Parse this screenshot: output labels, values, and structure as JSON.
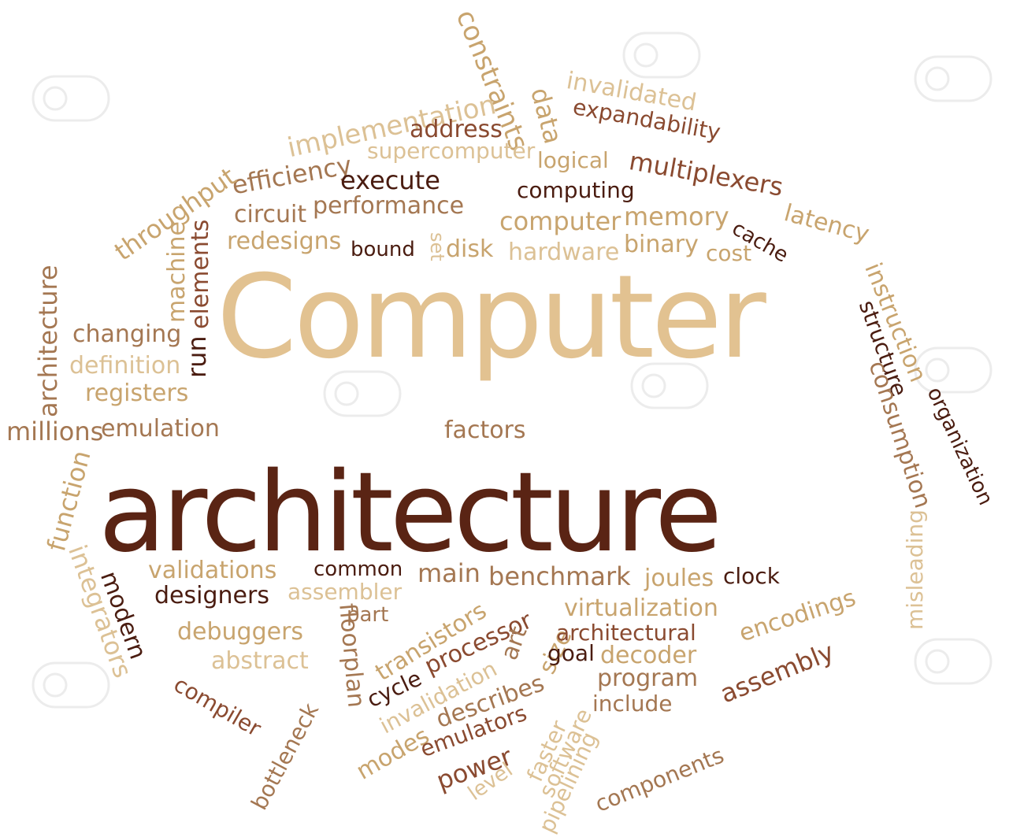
{
  "colors": {
    "light": "#dcc195",
    "tan": "#c8a46e",
    "mid": "#a47752",
    "brown": "#8a4a30",
    "dark": "#4a1c10",
    "title_light": "#e2c291",
    "title_dark": "#5a2414"
  },
  "title": {
    "line1": "Computer",
    "line2": "architecture"
  },
  "watermark": {
    "icon": "watermark-stamp-icon"
  },
  "words": [
    {
      "id": "constraints",
      "text": "constraints"
    },
    {
      "id": "implementation",
      "text": "implementation"
    },
    {
      "id": "data",
      "text": "data"
    },
    {
      "id": "invalidated",
      "text": "invalidated"
    },
    {
      "id": "expandability",
      "text": "expandability"
    },
    {
      "id": "address",
      "text": "address"
    },
    {
      "id": "supercomputer",
      "text": "supercomputer"
    },
    {
      "id": "logical",
      "text": "logical"
    },
    {
      "id": "efficiency",
      "text": "efficiency"
    },
    {
      "id": "multiplexers",
      "text": "multiplexers"
    },
    {
      "id": "execute",
      "text": "execute"
    },
    {
      "id": "computing",
      "text": "computing"
    },
    {
      "id": "throughput",
      "text": "throughput"
    },
    {
      "id": "circuit",
      "text": "circuit"
    },
    {
      "id": "performance",
      "text": "performance"
    },
    {
      "id": "computer",
      "text": "computer"
    },
    {
      "id": "memory",
      "text": "memory"
    },
    {
      "id": "latency",
      "text": "latency"
    },
    {
      "id": "cache",
      "text": "cache"
    },
    {
      "id": "redesigns",
      "text": "redesigns"
    },
    {
      "id": "bound",
      "text": "bound"
    },
    {
      "id": "set",
      "text": "set"
    },
    {
      "id": "disk",
      "text": "disk"
    },
    {
      "id": "hardware",
      "text": "hardware"
    },
    {
      "id": "binary",
      "text": "binary"
    },
    {
      "id": "cost",
      "text": "cost"
    },
    {
      "id": "machine",
      "text": "machine"
    },
    {
      "id": "run",
      "text": "run"
    },
    {
      "id": "elements",
      "text": "elements"
    },
    {
      "id": "architecture_small",
      "text": "architecture"
    },
    {
      "id": "instruction",
      "text": "instruction"
    },
    {
      "id": "structure",
      "text": "structure"
    },
    {
      "id": "changing",
      "text": "changing"
    },
    {
      "id": "definition",
      "text": "definition"
    },
    {
      "id": "registers",
      "text": "registers"
    },
    {
      "id": "consumption",
      "text": "consumption"
    },
    {
      "id": "organization",
      "text": "organization"
    },
    {
      "id": "millions",
      "text": "millions"
    },
    {
      "id": "emulation",
      "text": "emulation"
    },
    {
      "id": "factors",
      "text": "factors"
    },
    {
      "id": "function",
      "text": "function"
    },
    {
      "id": "misleading",
      "text": "misleading"
    },
    {
      "id": "integrators",
      "text": "integrators"
    },
    {
      "id": "validations",
      "text": "validations"
    },
    {
      "id": "common",
      "text": "common"
    },
    {
      "id": "main",
      "text": "main"
    },
    {
      "id": "benchmark",
      "text": "benchmark"
    },
    {
      "id": "joules",
      "text": "joules"
    },
    {
      "id": "clock",
      "text": "clock"
    },
    {
      "id": "modern",
      "text": "modern"
    },
    {
      "id": "designers",
      "text": "designers"
    },
    {
      "id": "assembler",
      "text": "assembler"
    },
    {
      "id": "encodings",
      "text": "encodings"
    },
    {
      "id": "part",
      "text": "part"
    },
    {
      "id": "transistors",
      "text": "transistors"
    },
    {
      "id": "processor",
      "text": "processor"
    },
    {
      "id": "virtualization",
      "text": "virtualization"
    },
    {
      "id": "debuggers",
      "text": "debuggers"
    },
    {
      "id": "floorplan",
      "text": "floorplan"
    },
    {
      "id": "size",
      "text": "size"
    },
    {
      "id": "architectural",
      "text": "architectural"
    },
    {
      "id": "assembly",
      "text": "assembly"
    },
    {
      "id": "abstract",
      "text": "abstract"
    },
    {
      "id": "art",
      "text": "art"
    },
    {
      "id": "cycle",
      "text": "cycle"
    },
    {
      "id": "goal",
      "text": "goal"
    },
    {
      "id": "decoder",
      "text": "decoder"
    },
    {
      "id": "compiler",
      "text": "compiler"
    },
    {
      "id": "invalidation",
      "text": "invalidation"
    },
    {
      "id": "describes",
      "text": "describes"
    },
    {
      "id": "program",
      "text": "program"
    },
    {
      "id": "bottleneck",
      "text": "bottleneck"
    },
    {
      "id": "modes",
      "text": "modes"
    },
    {
      "id": "emulators",
      "text": "emulators"
    },
    {
      "id": "faster",
      "text": "faster"
    },
    {
      "id": "software",
      "text": "software"
    },
    {
      "id": "include",
      "text": "include"
    },
    {
      "id": "components",
      "text": "components"
    },
    {
      "id": "power",
      "text": "power"
    },
    {
      "id": "level",
      "text": "level"
    },
    {
      "id": "pipelining",
      "text": "pipelining"
    }
  ]
}
